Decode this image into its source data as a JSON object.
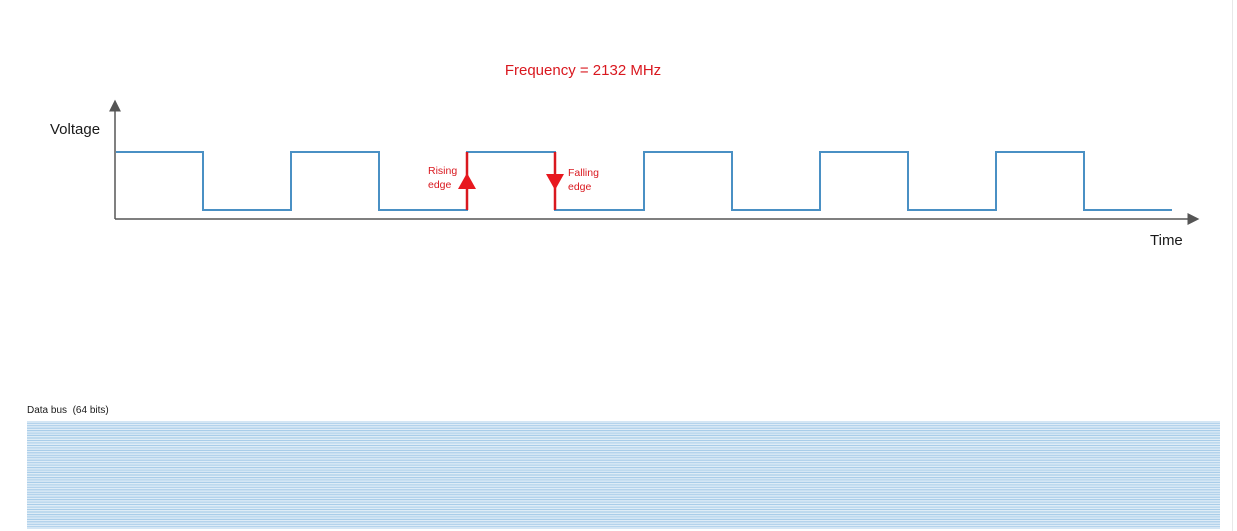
{
  "title": "Frequency = 2132 MHz",
  "clock_diagram": {
    "y_axis_label": "Voltage",
    "x_axis_label": "Time",
    "rising_edge_label_line1": "Rising",
    "rising_edge_label_line2": "edge",
    "falling_edge_label_line1": "Falling",
    "falling_edge_label_line2": "edge"
  },
  "data_bus": {
    "label": "Data bus  (64 bits)",
    "line_count": 64
  },
  "colors": {
    "signal": "#4a90c4",
    "axis": "#555555",
    "accent_red": "#d9181f",
    "bus_line": "#a9cde9",
    "text": "#1a1a1a"
  }
}
